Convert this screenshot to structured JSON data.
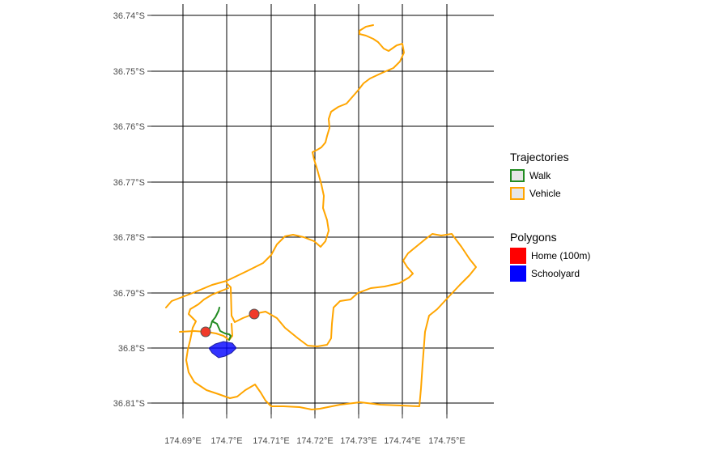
{
  "map": {
    "y_ticks": [
      "36.74°S",
      "36.75°S",
      "36.76°S",
      "36.77°S",
      "36.78°S",
      "36.79°S",
      "36.8°S",
      "36.81°S"
    ],
    "x_ticks": [
      "174.69°E",
      "174.7°E",
      "174.71°E",
      "174.72°E",
      "174.73°E",
      "174.74°E",
      "174.75°E"
    ],
    "colors": {
      "walk": "#228B22",
      "vehicle": "#FFA500",
      "home": "#FF0000",
      "schoolyard": "#0000FF",
      "grid": "#000000"
    }
  },
  "legend": {
    "trajectories": {
      "title": "Trajectories",
      "items": [
        {
          "label": "Walk",
          "color": "#228B22"
        },
        {
          "label": "Vehicle",
          "color": "#FFA500"
        }
      ]
    },
    "polygons": {
      "title": "Polygons",
      "items": [
        {
          "label": "Home (100m)",
          "color": "#FF0000"
        },
        {
          "label": "Schoolyard",
          "color": "#0000FF"
        }
      ]
    }
  }
}
